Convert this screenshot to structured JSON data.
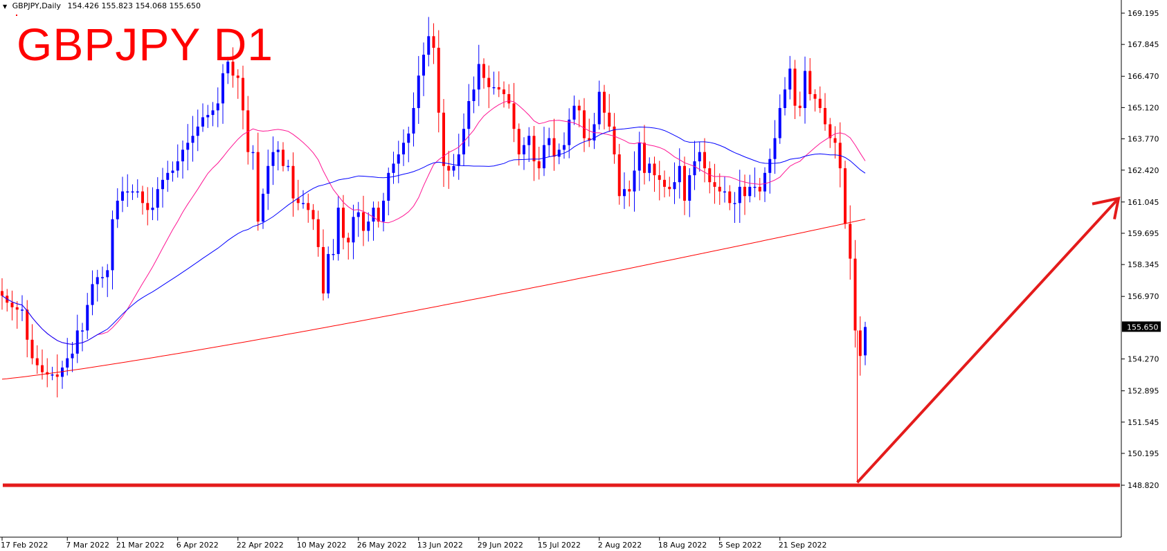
{
  "header": {
    "symbol_info": "GBPJPY,Daily",
    "ohlc": "154.426 155.823 154.068 155.650"
  },
  "title": "GBPJPY D1",
  "current_price": "155.650",
  "colors": {
    "bull": "#0000ff",
    "bear": "#ff0000",
    "ma_fast": "#ff1493",
    "ma_mid": "#0000ff",
    "ma_slow": "#ff0000",
    "annotation": "#e41b1b"
  },
  "chart_data": {
    "type": "candlestick",
    "title": "GBPJPY D1",
    "ylim": [
      148.3,
      169.8
    ],
    "y_ticks": [
      "169.195",
      "167.845",
      "166.470",
      "165.120",
      "163.770",
      "162.420",
      "161.045",
      "159.695",
      "158.345",
      "156.970",
      "155.650",
      "154.270",
      "152.895",
      "151.545",
      "150.195",
      "148.820"
    ],
    "x_ticks": [
      {
        "label": "17 Feb 2022",
        "index": 0
      },
      {
        "label": "7 Mar 2022",
        "index": 13
      },
      {
        "label": "21 Mar 2022",
        "index": 23
      },
      {
        "label": "6 Apr 2022",
        "index": 35
      },
      {
        "label": "22 Apr 2022",
        "index": 47
      },
      {
        "label": "10 May 2022",
        "index": 59
      },
      {
        "label": "26 May 2022",
        "index": 71
      },
      {
        "label": "13 Jun 2022",
        "index": 83
      },
      {
        "label": "29 Jun 2022",
        "index": 95
      },
      {
        "label": "15 Jul 2022",
        "index": 107
      },
      {
        "label": "2 Aug 2022",
        "index": 119
      },
      {
        "label": "18 Aug 2022",
        "index": 131
      },
      {
        "label": "5 Sep 2022",
        "index": 143
      },
      {
        "label": "21 Sep 2022",
        "index": 155
      }
    ],
    "close": [
      157.0,
      156.7,
      156.5,
      156.4,
      156.4,
      155.1,
      154.3,
      154.0,
      153.7,
      153.6,
      153.6,
      153.5,
      153.9,
      154.3,
      154.5,
      155.5,
      155.5,
      156.6,
      157.5,
      157.8,
      157.8,
      158.1,
      160.3,
      161.1,
      161.5,
      161.5,
      161.5,
      161.5,
      161.0,
      160.7,
      160.8,
      161.6,
      162.0,
      162.3,
      162.4,
      162.8,
      163.3,
      163.6,
      163.9,
      164.3,
      164.7,
      164.8,
      165.0,
      165.3,
      166.6,
      167.1,
      166.5,
      166.4,
      165.0,
      163.2,
      163.2,
      160.2,
      161.4,
      162.6,
      163.2,
      163.3,
      162.6,
      162.6,
      161.2,
      161.0,
      161.0,
      160.7,
      160.3,
      159.1,
      157.1,
      158.8,
      158.8,
      160.8,
      159.5,
      159.3,
      160.4,
      160.6,
      159.8,
      160.2,
      160.8,
      160.2,
      161.1,
      162.3,
      162.7,
      163.1,
      163.6,
      164.0,
      165.1,
      166.5,
      167.4,
      168.2,
      167.7,
      164.9,
      162.6,
      162.4,
      162.6,
      163.1,
      164.2,
      165.4,
      165.9,
      167.0,
      166.4,
      166.0,
      166.0,
      165.9,
      165.7,
      165.3,
      164.2,
      163.1,
      163.5,
      163.9,
      162.8,
      162.5,
      163.5,
      163.8,
      163.0,
      163.3,
      163.5,
      164.6,
      165.2,
      165.0,
      163.8,
      163.7,
      164.4,
      165.8,
      164.9,
      164.3,
      163.1,
      161.3,
      161.6,
      161.5,
      162.4,
      163.6,
      162.3,
      162.7,
      162.2,
      162.0,
      161.7,
      161.6,
      161.9,
      162.6,
      161.1,
      162.2,
      162.8,
      163.2,
      162.5,
      161.9,
      161.7,
      161.5,
      161.5,
      161.0,
      161.0,
      161.7,
      161.3,
      161.7,
      161.7,
      161.5,
      162.3,
      162.9,
      163.8,
      165.1,
      165.9,
      166.8,
      165.2,
      165.1,
      166.7,
      165.7,
      165.5,
      165.1,
      164.4,
      163.8,
      163.6,
      162.5,
      160.1,
      158.6,
      155.5,
      154.4,
      155.65
    ],
    "open": [
      157.2,
      157.0,
      156.7,
      156.5,
      156.4,
      156.4,
      155.1,
      154.3,
      154.0,
      153.7,
      153.6,
      153.6,
      153.5,
      153.9,
      154.3,
      154.5,
      155.5,
      155.5,
      156.6,
      157.5,
      157.8,
      157.8,
      158.1,
      160.3,
      161.1,
      161.5,
      161.5,
      161.5,
      161.5,
      161.0,
      160.7,
      160.8,
      161.6,
      162.0,
      162.3,
      162.4,
      162.8,
      163.3,
      163.6,
      163.9,
      164.3,
      164.7,
      164.8,
      165.0,
      165.3,
      166.6,
      167.1,
      166.5,
      166.4,
      165.0,
      163.2,
      163.2,
      160.2,
      161.4,
      162.6,
      163.2,
      163.3,
      162.6,
      162.6,
      161.2,
      161.0,
      161.0,
      160.7,
      160.3,
      159.1,
      157.1,
      158.8,
      158.8,
      160.8,
      159.5,
      159.3,
      160.4,
      160.6,
      159.8,
      160.2,
      160.8,
      160.2,
      161.1,
      162.3,
      162.7,
      163.1,
      163.6,
      164.0,
      165.1,
      166.5,
      167.4,
      168.2,
      167.7,
      164.9,
      162.6,
      162.4,
      162.6,
      163.1,
      164.2,
      165.4,
      165.9,
      167.0,
      166.4,
      166.0,
      166.0,
      165.9,
      165.7,
      165.3,
      164.2,
      163.1,
      163.5,
      163.9,
      162.8,
      162.5,
      163.5,
      163.8,
      163.0,
      163.3,
      163.5,
      164.6,
      165.2,
      165.0,
      163.8,
      163.7,
      164.4,
      165.8,
      164.9,
      164.3,
      163.1,
      161.3,
      161.6,
      161.5,
      162.4,
      163.6,
      162.3,
      162.7,
      162.2,
      162.0,
      161.7,
      161.6,
      161.9,
      162.6,
      161.1,
      162.2,
      162.8,
      163.2,
      162.5,
      161.9,
      161.7,
      161.5,
      161.5,
      161.0,
      161.0,
      161.7,
      161.3,
      161.7,
      161.7,
      161.5,
      162.3,
      162.9,
      163.8,
      165.1,
      165.9,
      166.8,
      165.2,
      165.1,
      166.7,
      165.7,
      165.5,
      165.1,
      164.4,
      163.8,
      163.6,
      162.5,
      160.1,
      158.6,
      155.5,
      154.426
    ],
    "high_offset": 0.7,
    "low_offset": 0.7,
    "ma_fast_label": "",
    "ma_mid_label": "",
    "ma_slow_label": "",
    "support_level": 148.82
  }
}
